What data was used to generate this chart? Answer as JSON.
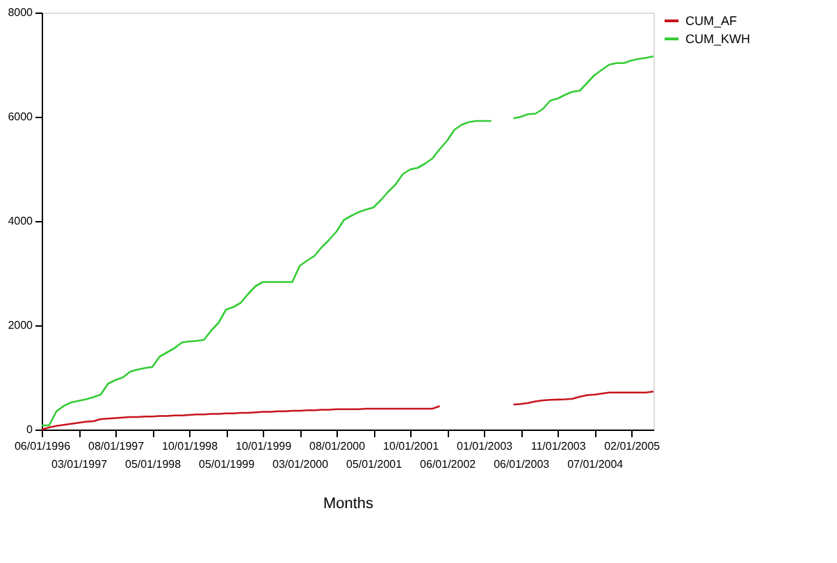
{
  "chart_data": {
    "type": "line",
    "xlabel": "Months",
    "categories": [
      "06/01/1996",
      null,
      null,
      null,
      null,
      "03/01/1997",
      null,
      null,
      null,
      null,
      "08/01/1997",
      null,
      null,
      null,
      null,
      "05/01/1998",
      null,
      null,
      null,
      null,
      "10/01/1998",
      null,
      null,
      null,
      null,
      "05/01/1999",
      null,
      null,
      null,
      null,
      "10/01/1999",
      null,
      null,
      null,
      null,
      "03/01/2000",
      null,
      null,
      null,
      null,
      "08/01/2000",
      null,
      null,
      null,
      null,
      "05/01/2001",
      null,
      null,
      null,
      null,
      "10/01/2001",
      null,
      null,
      null,
      null,
      "06/01/2002",
      null,
      null,
      null,
      null,
      "01/01/2003",
      null,
      null,
      null,
      null,
      "06/01/2003",
      null,
      null,
      null,
      null,
      "11/01/2003",
      null,
      null,
      null,
      null,
      "07/01/2004",
      null,
      null,
      null,
      null,
      "02/01/2005",
      null,
      null,
      null
    ],
    "series": [
      {
        "name": "CUM_AF",
        "color": "#c8141e",
        "values": [
          0,
          40,
          70,
          90,
          110,
          130,
          150,
          160,
          200,
          210,
          220,
          230,
          240,
          240,
          250,
          250,
          260,
          260,
          270,
          270,
          280,
          290,
          290,
          300,
          300,
          310,
          310,
          320,
          320,
          330,
          340,
          340,
          350,
          350,
          360,
          360,
          370,
          370,
          380,
          380,
          390,
          390,
          390,
          390,
          400,
          400,
          400,
          400,
          400,
          400,
          400,
          400,
          400,
          400,
          450,
          null,
          null,
          null,
          null,
          null,
          null,
          null,
          null,
          null,
          480,
          490,
          510,
          540,
          560,
          570,
          575,
          580,
          590,
          630,
          660,
          670,
          690,
          710,
          710,
          710,
          710,
          710,
          710,
          730
        ]
      },
      {
        "name": "CUM_KWH",
        "color": "#33cc33",
        "values": [
          80,
          80,
          350,
          455,
          520,
          550,
          580,
          620,
          670,
          880,
          950,
          1000,
          1110,
          1150,
          1180,
          1200,
          1400,
          1480,
          1560,
          1670,
          1690,
          1700,
          1720,
          1900,
          2050,
          2300,
          2350,
          2430,
          2600,
          2750,
          2830,
          2830,
          2830,
          2830,
          2830,
          3140,
          3240,
          3330,
          3500,
          3640,
          3800,
          4020,
          4100,
          4170,
          4220,
          4260,
          4400,
          4560,
          4700,
          4900,
          4990,
          5020,
          5100,
          5200,
          5380,
          5540,
          5750,
          5850,
          5900,
          5920,
          5920,
          5920,
          null,
          null,
          5970,
          6000,
          6050,
          6060,
          6150,
          6310,
          6350,
          6420,
          6480,
          6500,
          6650,
          6800,
          6900,
          7000,
          7030,
          7030,
          7080,
          7110,
          7130,
          7160
        ]
      }
    ],
    "ylim": [
      0,
      8000
    ],
    "yticks": [
      0,
      2000,
      4000,
      6000,
      8000
    ],
    "grid": false,
    "legend": "right",
    "marker": "none",
    "line_style": "solid"
  }
}
